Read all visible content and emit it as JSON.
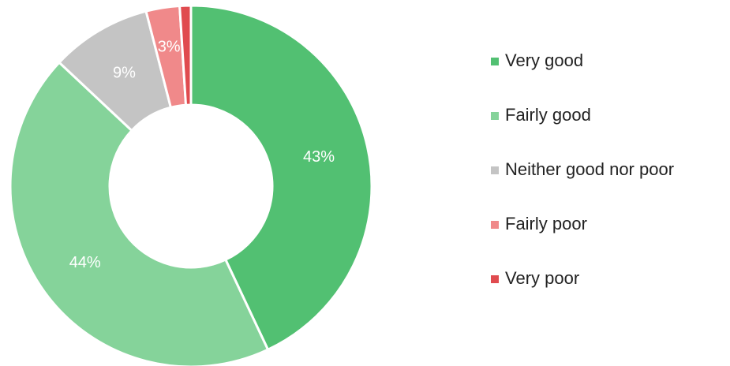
{
  "chart_data": {
    "type": "donut",
    "categories": [
      "Very good",
      "Fairly good",
      "Neither good nor poor",
      "Fairly poor",
      "Very poor"
    ],
    "values": [
      43,
      44,
      9,
      3,
      1
    ],
    "value_labels": [
      "43%",
      "44%",
      "9%",
      "3%",
      null
    ],
    "colors": [
      "#52c072",
      "#85d39a",
      "#c4c4c4",
      "#f0898a",
      "#e04b4f"
    ],
    "legend": "right"
  }
}
